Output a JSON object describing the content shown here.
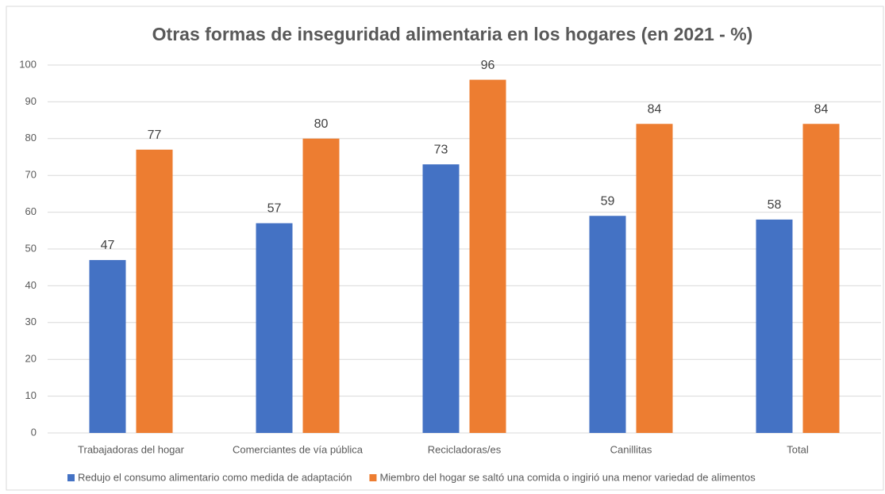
{
  "chart_data": {
    "type": "bar",
    "title": "Otras formas de inseguridad alimentaria en los hogares (en 2021 - %)",
    "categories": [
      "Trabajadoras del hogar",
      "Comerciantes de vía pública",
      "Recicladoras/es",
      "Canillitas",
      "Total"
    ],
    "series": [
      {
        "name": "Redujo el consumo alimentario como medida de adaptación",
        "color": "#4472c4",
        "values": [
          47,
          57,
          73,
          59,
          58
        ]
      },
      {
        "name": "Miembro del hogar se saltó una comida o ingirió una menor variedad de alimentos",
        "color": "#ed7d31",
        "values": [
          77,
          80,
          96,
          84,
          84
        ]
      }
    ],
    "ylim": [
      0,
      100
    ],
    "yticks": [
      0,
      10,
      20,
      30,
      40,
      50,
      60,
      70,
      80,
      90,
      100
    ],
    "grid": true,
    "legend": "bottom"
  }
}
